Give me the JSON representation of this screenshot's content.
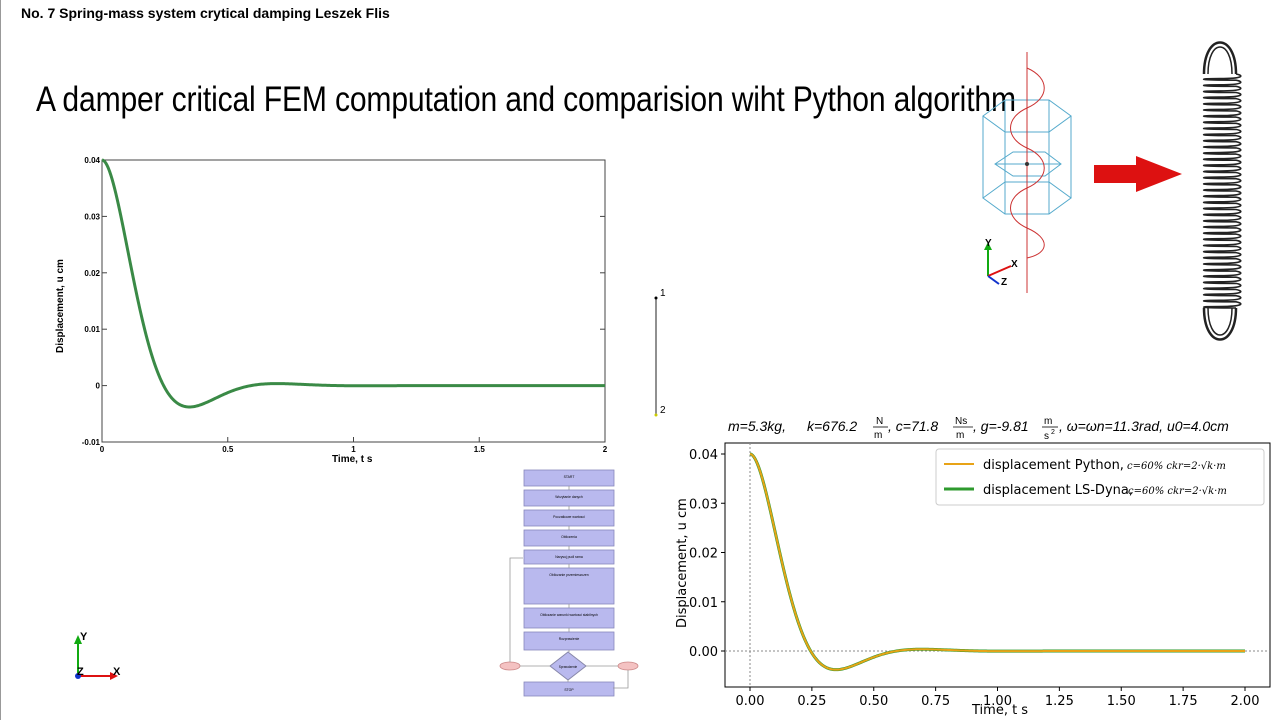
{
  "header": {
    "title": "No. 7 Spring-mass system crytical damping Leszek Flis",
    "heading": "A damper critical FEM computation and comparision wiht Python algorithm"
  },
  "lsdyna_plot": {
    "ylabel": "Displacement, u cm",
    "xlabel": "Time, t s",
    "y_ticks": [
      "0.04",
      "0.03",
      "0.02",
      "0.01",
      "0",
      "-0.01"
    ],
    "x_ticks": [
      "0",
      "0.5",
      "1",
      "1.5",
      "2"
    ],
    "series_color": "#3a8a46"
  },
  "model_view": {
    "node_labels": [
      "1",
      "2"
    ],
    "axis_labels": {
      "y": "Y",
      "x": "X",
      "z": "Z"
    }
  },
  "triad_bottom": {
    "y": "Y",
    "x": "X",
    "z": "Z"
  },
  "params_line": {
    "m": "m=5.3kg,",
    "k": "k=676.2",
    "k_num": "N",
    "k_den": "m",
    "c": ", c=71.8",
    "c_num": "Ns",
    "c_den": "m",
    "g": ", g=-9.81",
    "g_num": "m",
    "g_den": "s",
    "g_exp": "2",
    "rest": ", ω=ωn=11.3rad, u0=4.0cm"
  },
  "flowchart": {
    "steps": [
      "START",
      "Wczytanie danych",
      "Poczatkowe wartosci",
      "Obliczenia",
      "Narysuj pudl rama",
      "Obliczanie przemieszczen",
      "Obliczanie warunki wartosci stabilnych",
      "Rozprawienie",
      "Wyprowadzenie danych",
      "STOP"
    ],
    "box_color": "#b9b9ee",
    "decision_label": "Sprawdzenie"
  },
  "python_plot": {
    "ylabel": "Displacement, u cm",
    "xlabel": "Time, t s",
    "y_ticks": [
      "0.04",
      "0.03",
      "0.02",
      "0.01",
      "0.00"
    ],
    "x_ticks": [
      "0.00",
      "0.25",
      "0.50",
      "0.75",
      "1.00",
      "1.25",
      "1.50",
      "1.75",
      "2.00"
    ],
    "legend": [
      {
        "label": "displacement Python,",
        "formula": "c=60% ckr=2·√k·m",
        "color": "#e8a317"
      },
      {
        "label": "displacement LS-Dyna,",
        "formula": "c=60% ckr=2·√k·m",
        "color": "#2e9a2e"
      }
    ]
  },
  "chart_data": {
    "type": "line",
    "x_range": [
      0,
      2
    ],
    "y_range": [
      -0.01,
      0.04
    ],
    "u0": 0.04,
    "omega_n": 11.3,
    "damping_ratio": 0.6,
    "series": [
      {
        "name": "displacement Python",
        "color": "#e8a317"
      },
      {
        "name": "displacement LS-Dyna",
        "color": "#2e9a2e"
      }
    ]
  },
  "colors": {
    "arrow": "#dd1111",
    "wire": "#55aacc",
    "helix": "#cc3333"
  }
}
